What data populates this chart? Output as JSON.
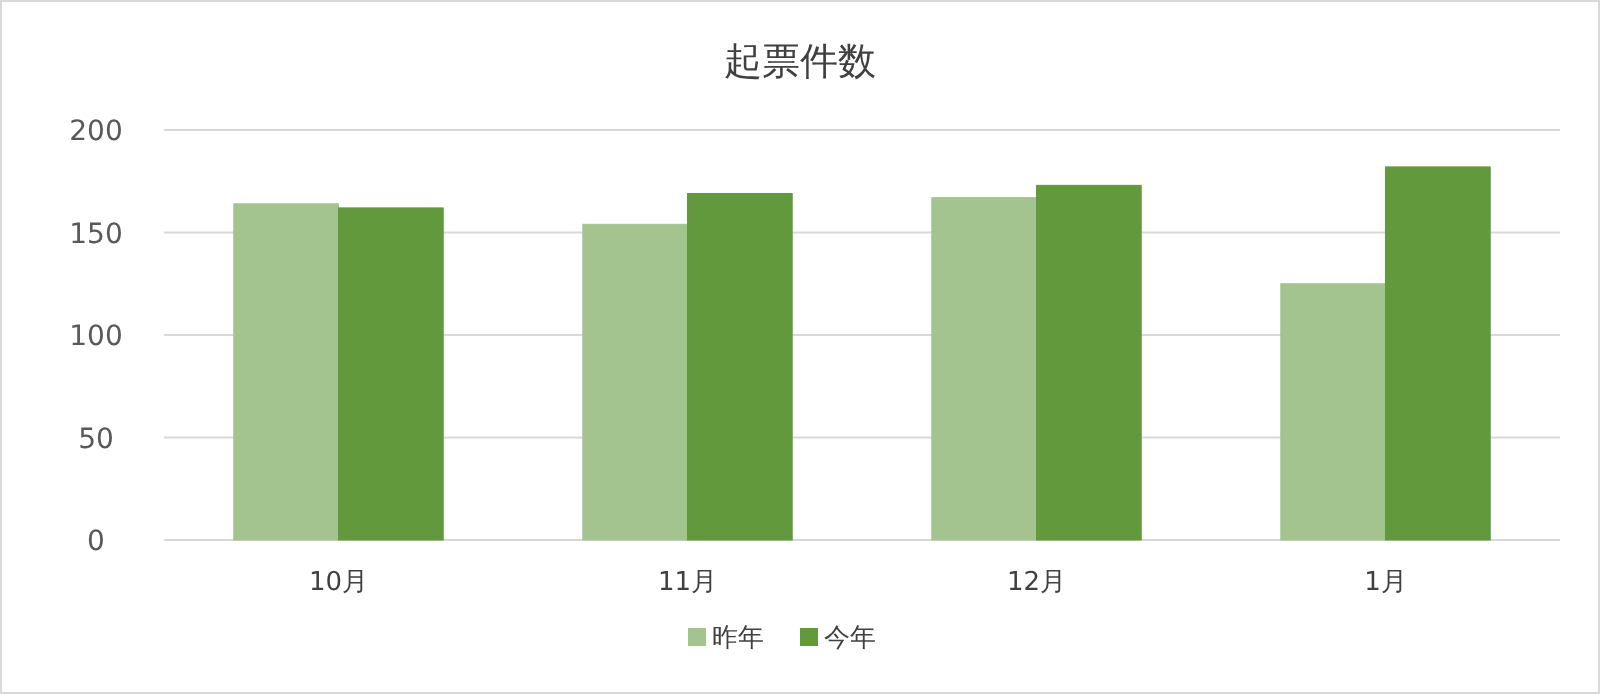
{
  "chart_data": {
    "type": "bar",
    "title": "起票件数",
    "categories": [
      "10月",
      "11月",
      "12月",
      "1月"
    ],
    "series": [
      {
        "name": "昨年",
        "color": "#a3c48f",
        "values": [
          164,
          154,
          167,
          125
        ]
      },
      {
        "name": "今年",
        "color": "#62993c",
        "values": [
          162,
          169,
          173,
          182
        ]
      }
    ],
    "ylim": [
      0,
      200
    ],
    "yticks": [
      0,
      50,
      100,
      150,
      200
    ],
    "grid": "y",
    "legend": "bottom"
  }
}
